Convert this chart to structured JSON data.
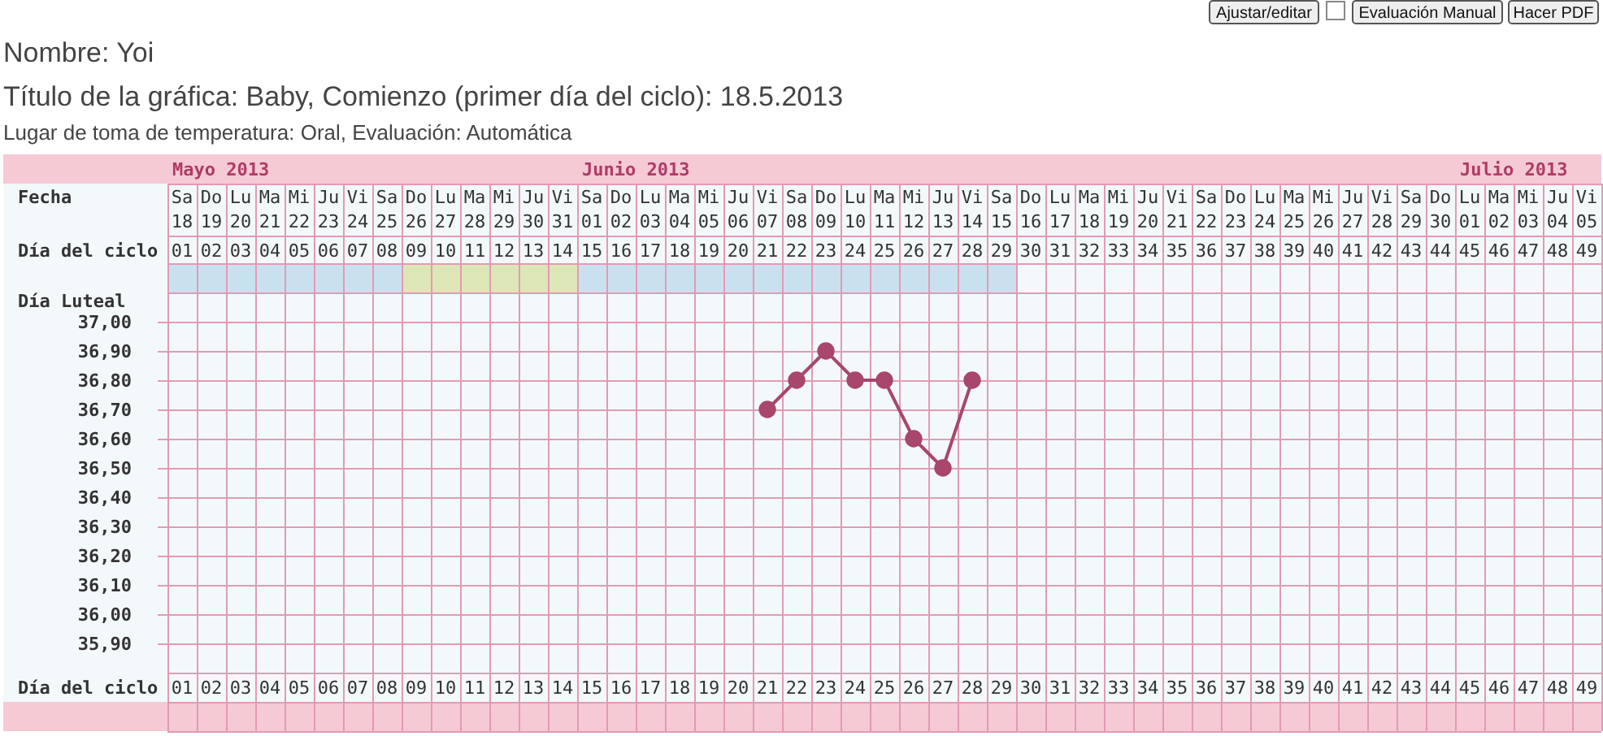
{
  "chart_data": {
    "type": "line",
    "title": "Nombre: Yoi",
    "subtitle": "Título de la gráfica: Baby, Comienzo (primer día del ciclo): 18.5.2013",
    "annotations": [
      "Lugar de toma de temperatura: Oral, Evaluación: Automática",
      "Fecha",
      "Día del ciclo",
      "Día Luteal",
      "Día del ciclo",
      "Ajustar/editar",
      "Evaluación Manual",
      "Hacer PDF",
      "Mayo 2013",
      "Junio 2013",
      "Julio 2013"
    ],
    "categories": [
      "01",
      "02",
      "03",
      "04",
      "05",
      "06",
      "07",
      "08",
      "09",
      "10",
      "11",
      "12",
      "13",
      "14",
      "15",
      "16",
      "17",
      "18",
      "19",
      "20",
      "21",
      "22",
      "23",
      "24",
      "25",
      "26",
      "27",
      "28",
      "29",
      "30",
      "31",
      "32",
      "33",
      "34",
      "35",
      "36",
      "37",
      "38",
      "39",
      "40",
      "41",
      "42",
      "43",
      "44",
      "45",
      "46",
      "47",
      "48",
      "49"
    ],
    "series": [
      {
        "color": "#a8466c",
        "values": [
          null,
          null,
          null,
          null,
          null,
          null,
          null,
          null,
          null,
          null,
          null,
          null,
          null,
          null,
          null,
          null,
          null,
          null,
          null,
          null,
          36.7,
          36.8,
          36.9,
          36.8,
          36.8,
          36.6,
          36.5,
          36.8,
          null,
          null,
          null,
          null,
          null,
          null,
          null,
          null,
          null,
          null,
          null,
          null,
          null,
          null,
          null,
          null,
          null,
          null,
          null,
          null,
          null
        ]
      }
    ],
    "ylim": [
      35.8,
      37.1
    ],
    "yticks": [
      {
        "value": 37.0,
        "label": "37,00"
      },
      {
        "value": 36.9,
        "label": "36,90"
      },
      {
        "value": 36.8,
        "label": "36,80"
      },
      {
        "value": 36.7,
        "label": "36,70"
      },
      {
        "value": 36.6,
        "label": "36,60"
      },
      {
        "value": 36.5,
        "label": "36,50"
      },
      {
        "value": 36.4,
        "label": "36,40"
      },
      {
        "value": 36.3,
        "label": "36,30"
      },
      {
        "value": 36.2,
        "label": "36,20"
      },
      {
        "value": 36.1,
        "label": "36,10"
      },
      {
        "value": 36.0,
        "label": "36,00"
      },
      {
        "value": 35.9,
        "label": "35,90"
      }
    ],
    "x2lim": [
      "2013-05-17T12:00",
      "2013-07-05T12:00"
    ],
    "x2ticks": [
      {
        "value": "2013-05-18",
        "label": "Sa 18"
      },
      {
        "value": "2013-05-19",
        "label": "Do 19"
      },
      {
        "value": "2013-05-20",
        "label": "Lu 20"
      },
      {
        "value": "2013-05-21",
        "label": "Ma 21"
      },
      {
        "value": "2013-05-22",
        "label": "Mi 22"
      },
      {
        "value": "2013-05-23",
        "label": "Ju 23"
      },
      {
        "value": "2013-05-24",
        "label": "Vi 24"
      },
      {
        "value": "2013-05-25",
        "label": "Sa 25"
      },
      {
        "value": "2013-05-26",
        "label": "Do 26"
      },
      {
        "value": "2013-05-27",
        "label": "Lu 27"
      },
      {
        "value": "2013-05-28",
        "label": "Ma 28"
      },
      {
        "value": "2013-05-29",
        "label": "Mi 29"
      },
      {
        "value": "2013-05-30",
        "label": "Ju 30"
      },
      {
        "value": "2013-05-31",
        "label": "Vi 31"
      },
      {
        "value": "2013-06-01",
        "label": "Sa 01"
      },
      {
        "value": "2013-06-02",
        "label": "Do 02"
      },
      {
        "value": "2013-06-03",
        "label": "Lu 03"
      },
      {
        "value": "2013-06-04",
        "label": "Ma 04"
      },
      {
        "value": "2013-06-05",
        "label": "Mi 05"
      },
      {
        "value": "2013-06-06",
        "label": "Ju 06"
      },
      {
        "value": "2013-06-07",
        "label": "Vi 07"
      },
      {
        "value": "2013-06-08",
        "label": "Sa 08"
      },
      {
        "value": "2013-06-09",
        "label": "Do 09"
      },
      {
        "value": "2013-06-10",
        "label": "Lu 10"
      },
      {
        "value": "2013-06-11",
        "label": "Ma 11"
      },
      {
        "value": "2013-06-12",
        "label": "Mi 12"
      },
      {
        "value": "2013-06-13",
        "label": "Ju 13"
      },
      {
        "value": "2013-06-14",
        "label": "Vi 14"
      },
      {
        "value": "2013-06-15",
        "label": "Sa 15"
      },
      {
        "value": "2013-06-16",
        "label": "Do 16"
      },
      {
        "value": "2013-06-17",
        "label": "Lu 17"
      },
      {
        "value": "2013-06-18",
        "label": "Ma 18"
      },
      {
        "value": "2013-06-19",
        "label": "Mi 19"
      },
      {
        "value": "2013-06-20",
        "label": "Ju 20"
      },
      {
        "value": "2013-06-21",
        "label": "Vi 21"
      },
      {
        "value": "2013-06-22",
        "label": "Sa 22"
      },
      {
        "value": "2013-06-23",
        "label": "Do 23"
      },
      {
        "value": "2013-06-24",
        "label": "Lu 24"
      },
      {
        "value": "2013-06-25",
        "label": "Ma 25"
      },
      {
        "value": "2013-06-26",
        "label": "Mi 26"
      },
      {
        "value": "2013-06-27",
        "label": "Ju 27"
      },
      {
        "value": "2013-06-28",
        "label": "Vi 28"
      },
      {
        "value": "2013-06-29",
        "label": "Sa 29"
      },
      {
        "value": "2013-06-30",
        "label": "Do 30"
      },
      {
        "value": "2013-07-01",
        "label": "Lu 01"
      },
      {
        "value": "2013-07-02",
        "label": "Ma 02"
      },
      {
        "value": "2013-07-03",
        "label": "Mi 03"
      },
      {
        "value": "2013-07-04",
        "label": "Ju 04"
      },
      {
        "value": "2013-07-05",
        "label": "Vi 05"
      }
    ],
    "grid": true,
    "marker": "circle"
  }
}
